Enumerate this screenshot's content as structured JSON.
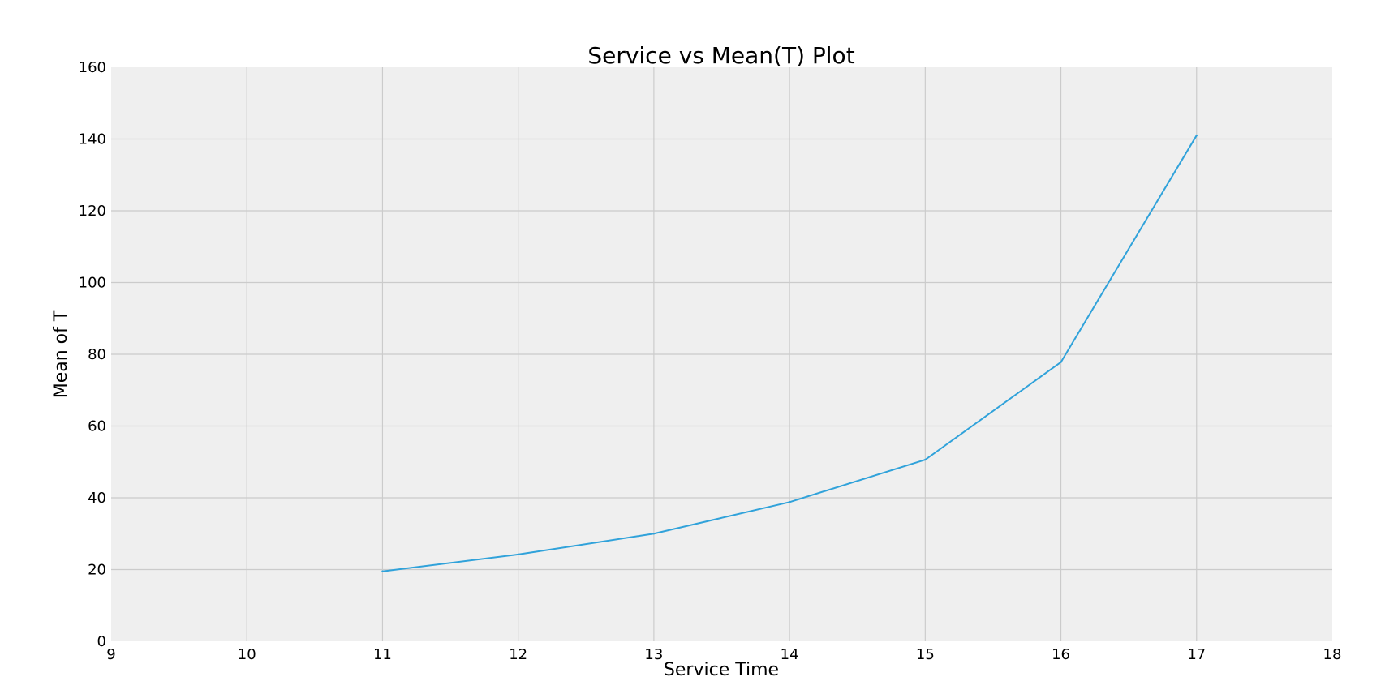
{
  "colors": {
    "plot_background": "#efefef",
    "grid": "#cbcbcb",
    "series": "#30a2da"
  },
  "chart_data": {
    "type": "line",
    "title": "Service vs Mean(T) Plot",
    "xlabel": "Service Time",
    "ylabel": "Mean of T",
    "xlim": [
      9,
      18
    ],
    "ylim": [
      0,
      160
    ],
    "xticks": [
      9,
      10,
      11,
      12,
      13,
      14,
      15,
      16,
      17,
      18
    ],
    "yticks": [
      0,
      20,
      40,
      60,
      80,
      100,
      120,
      140,
      160
    ],
    "grid": true,
    "legend": "none",
    "series": [
      {
        "x": [
          11,
          12,
          13,
          14,
          15,
          16,
          17
        ],
        "values": [
          19.5,
          24.2,
          30.0,
          38.8,
          50.6,
          77.8,
          141.0
        ]
      }
    ]
  }
}
